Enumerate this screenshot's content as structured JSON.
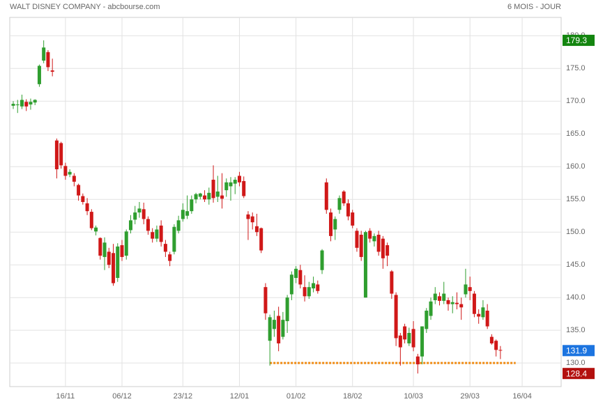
{
  "chart_data": {
    "type": "candlestick",
    "title": "WALT DISNEY COMPANY - abcbourse.com",
    "subtitle": "6 MOIS - JOUR",
    "categories": [
      null,
      null,
      null,
      null,
      null,
      null,
      null,
      null,
      null,
      null,
      null,
      null,
      "16/11",
      null,
      null,
      null,
      null,
      null,
      null,
      null,
      null,
      null,
      null,
      null,
      null,
      "06/12",
      null,
      null,
      null,
      null,
      null,
      null,
      null,
      null,
      null,
      null,
      null,
      null,
      null,
      "23/12",
      null,
      null,
      null,
      null,
      null,
      null,
      null,
      null,
      null,
      null,
      null,
      null,
      "12/01",
      null,
      null,
      null,
      null,
      null,
      null,
      null,
      null,
      null,
      null,
      null,
      null,
      "01/02",
      null,
      null,
      null,
      null,
      null,
      null,
      null,
      null,
      null,
      null,
      null,
      null,
      "18/02",
      null,
      null,
      null,
      null,
      null,
      null,
      null,
      null,
      null,
      null,
      null,
      null,
      null,
      "10/03",
      null,
      null,
      null,
      null,
      null,
      null,
      null,
      null,
      null,
      null,
      null,
      null,
      "29/03",
      null,
      null,
      null,
      null,
      null,
      null,
      null,
      null,
      null,
      null,
      null,
      "16/04"
    ],
    "ohlc": [
      [
        169.3,
        170,
        168.8,
        169.6
      ],
      [
        169.4,
        170.2,
        168.2,
        169.5
      ],
      [
        169.2,
        171,
        168.8,
        170.2
      ],
      [
        169.9,
        170.3,
        168.5,
        169.2
      ],
      [
        169.5,
        170.4,
        168.7,
        169.9
      ],
      [
        169.8,
        170.3,
        169.4,
        170.2
      ],
      [
        172.6,
        175.6,
        172.2,
        175.4
      ],
      [
        176.2,
        179.3,
        175.8,
        178.2
      ],
      [
        177.5,
        177.8,
        174.6,
        175.2
      ],
      [
        174.7,
        176.5,
        173.8,
        174.5
      ],
      [
        164,
        164.3,
        158.2,
        159.6
      ],
      [
        163.6,
        163.8,
        159.7,
        160.2
      ],
      [
        160.1,
        160.6,
        158,
        158.6
      ],
      [
        158.8,
        159.6,
        158.4,
        159.2
      ],
      [
        158.6,
        159,
        157,
        157.7
      ],
      [
        157.2,
        157.4,
        154.8,
        155.6
      ],
      [
        155.5,
        155.9,
        154.2,
        154.6
      ],
      [
        154.4,
        155.2,
        152.6,
        153.2
      ],
      [
        153.1,
        153.5,
        150.3,
        150.6
      ],
      [
        150.1,
        151,
        149.5,
        150.7
      ],
      [
        149.1,
        149.2,
        145.8,
        146.4
      ],
      [
        146.2,
        149.2,
        144.2,
        148.4
      ],
      [
        147,
        147.6,
        144.5,
        145
      ],
      [
        146.8,
        148.2,
        141.8,
        142.2
      ],
      [
        143,
        148.3,
        142.4,
        147.8
      ],
      [
        148,
        148.8,
        145.6,
        146.2
      ],
      [
        146.4,
        150.4,
        145.8,
        150.1
      ],
      [
        150.3,
        152.6,
        149.8,
        151.8
      ],
      [
        151.9,
        154,
        151.2,
        153
      ],
      [
        153,
        154.6,
        152.2,
        153.6
      ],
      [
        153.5,
        154.5,
        151.2,
        152
      ],
      [
        152,
        152.4,
        149.6,
        150.2
      ],
      [
        150,
        150.6,
        148.4,
        149
      ],
      [
        149,
        151,
        148.5,
        150.4
      ],
      [
        151,
        151.8,
        147.8,
        148.5
      ],
      [
        148.2,
        148.8,
        146.2,
        147
      ],
      [
        146.6,
        147,
        144.8,
        145.6
      ],
      [
        147,
        151.2,
        146.6,
        150.8
      ],
      [
        150.2,
        152.5,
        149.8,
        151.8
      ],
      [
        152,
        154.4,
        151.6,
        153.4
      ],
      [
        152.5,
        155.6,
        152,
        153.2
      ],
      [
        153.2,
        155.6,
        152.8,
        155
      ],
      [
        155,
        156,
        154.4,
        155.8
      ],
      [
        155.4,
        156,
        155,
        155.9
      ],
      [
        155.6,
        156.4,
        154.6,
        155
      ],
      [
        155,
        156.8,
        154.2,
        156
      ],
      [
        158,
        160.2,
        154.5,
        155.2
      ],
      [
        155.4,
        158.6,
        154.6,
        156.2
      ],
      [
        155.6,
        159,
        153.6,
        155.1
      ],
      [
        156.4,
        158.2,
        155.4,
        157.6
      ],
      [
        157,
        158.4,
        154.8,
        157.6
      ],
      [
        157.4,
        158.4,
        155.8,
        158
      ],
      [
        158.6,
        159.2,
        157,
        157.6
      ],
      [
        157.8,
        158.5,
        155.2,
        155.5
      ],
      [
        152.7,
        153.2,
        148.8,
        152
      ],
      [
        152.4,
        153,
        150.4,
        151.5
      ],
      [
        150.9,
        152.8,
        149.4,
        150
      ],
      [
        150.6,
        150.7,
        146.8,
        147.2
      ],
      [
        141.6,
        142.2,
        136.6,
        137.6
      ],
      [
        133.4,
        137.4,
        129.6,
        137
      ],
      [
        135.2,
        138,
        134,
        136.6
      ],
      [
        137.2,
        138.6,
        131.8,
        133
      ],
      [
        134,
        137.8,
        133.6,
        136.6
      ],
      [
        136.4,
        140.4,
        134.6,
        140
      ],
      [
        140.5,
        144,
        139.6,
        143.5
      ],
      [
        143,
        144.8,
        142.2,
        144.4
      ],
      [
        144.2,
        145,
        141.4,
        142
      ],
      [
        141.6,
        143.4,
        139.4,
        140.2
      ],
      [
        140.2,
        142.4,
        139.8,
        141.6
      ],
      [
        141.4,
        143.2,
        140.8,
        142.2
      ],
      [
        142,
        142.6,
        140.6,
        141
      ],
      [
        144.2,
        147.4,
        143.6,
        147.2
      ],
      [
        157.6,
        158.2,
        152.8,
        153.4
      ],
      [
        153,
        153.6,
        148.6,
        149.4
      ],
      [
        150.4,
        152.4,
        148.8,
        152
      ],
      [
        153.4,
        155.6,
        152.8,
        155.2
      ],
      [
        156.2,
        156.4,
        154,
        154.4
      ],
      [
        154.4,
        155,
        151.8,
        152.4
      ],
      [
        153,
        153.4,
        150.6,
        151
      ],
      [
        150.2,
        150.6,
        147,
        147.6
      ],
      [
        149.6,
        150.2,
        145.6,
        146.2
      ],
      [
        140,
        150.2,
        140,
        150
      ],
      [
        150.2,
        150.6,
        148.4,
        149
      ],
      [
        148.6,
        149.8,
        147.8,
        149.4
      ],
      [
        149.6,
        150.2,
        146.4,
        147
      ],
      [
        149,
        149.4,
        144.4,
        146
      ],
      [
        148,
        148.4,
        144.8,
        146.4
      ],
      [
        144,
        144.2,
        139.8,
        140.6
      ],
      [
        140.4,
        140.8,
        132.6,
        133.8
      ],
      [
        134.2,
        134.6,
        129.6,
        132.4
      ],
      [
        135.6,
        136,
        133,
        133.6
      ],
      [
        133,
        135.4,
        132.6,
        134.6
      ],
      [
        135.2,
        136.4,
        131.8,
        132.4
      ],
      [
        131,
        131.4,
        128.4,
        129.8
      ],
      [
        131,
        135.6,
        129.8,
        135.6
      ],
      [
        135.2,
        138.4,
        134.6,
        138
      ],
      [
        137.2,
        140,
        136.6,
        139.4
      ],
      [
        139.6,
        141.6,
        139,
        140.6
      ],
      [
        140.2,
        140.8,
        138.8,
        139.5
      ],
      [
        139.5,
        142.4,
        139,
        140.6
      ],
      [
        139.6,
        140,
        138,
        139
      ],
      [
        139,
        140.2,
        137.6,
        139.3
      ],
      [
        139.2,
        140.8,
        138.2,
        139
      ],
      [
        139,
        140,
        136.6,
        138.5
      ],
      [
        140.5,
        144.4,
        140,
        142
      ],
      [
        141.6,
        143.2,
        139.6,
        141
      ],
      [
        140.6,
        141,
        137,
        137.5
      ],
      [
        137.5,
        138.2,
        136,
        137.1
      ],
      [
        137,
        139.6,
        136.6,
        138.5
      ],
      [
        138,
        139,
        135.2,
        135.6
      ],
      [
        134,
        134.4,
        132.8,
        133
      ],
      [
        133.4,
        133.6,
        131,
        132
      ],
      [
        132,
        132.6,
        130.6,
        131.9
      ],
      null,
      null,
      null,
      null,
      null
    ],
    "up_color": "#2f9e2f",
    "down_color": "#d01818",
    "ylim": [
      126.4,
      182.8
    ],
    "yticks": [
      {
        "value": 130,
        "label": "130.0"
      },
      {
        "value": 135,
        "label": "135.0"
      },
      {
        "value": 140,
        "label": "140.0"
      },
      {
        "value": 145,
        "label": "145.0"
      },
      {
        "value": 150,
        "label": "150.0"
      },
      {
        "value": 155,
        "label": "155.0"
      },
      {
        "value": 160,
        "label": "160.0"
      },
      {
        "value": 165,
        "label": "165.0"
      },
      {
        "value": 170,
        "label": "170.0"
      },
      {
        "value": 175,
        "label": "175.0"
      },
      {
        "value": 180,
        "label": "180.0"
      }
    ],
    "grid": true,
    "markers": [
      {
        "value": 179.3,
        "color": "#13850f"
      },
      {
        "value": 131.9,
        "color": "#1c74e0"
      },
      {
        "value": 128.4,
        "color": "#b3100e"
      }
    ],
    "support": {
      "value": 130,
      "color": "#f08a10"
    }
  }
}
